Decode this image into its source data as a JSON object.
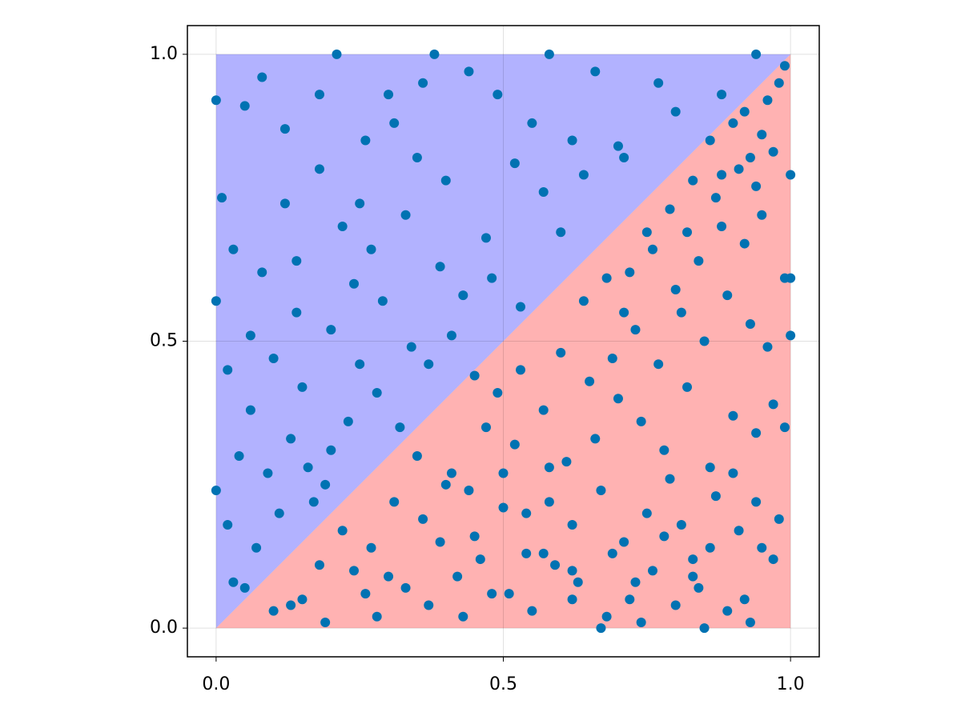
{
  "chart_data": {
    "type": "scatter",
    "xlim": [
      -0.05,
      1.05
    ],
    "ylim": [
      -0.05,
      1.05
    ],
    "xticks": [
      {
        "value": 0,
        "label": "0.0"
      },
      0.5,
      {
        "value": 1,
        "label": "1.0"
      }
    ],
    "yticks": [
      {
        "value": 0,
        "label": "0.0"
      },
      0.5,
      {
        "value": 1,
        "label": "1.0"
      }
    ],
    "grid": true,
    "regions": [
      {
        "color": "rgba(0,0,255,0.3)",
        "x": [
          0,
          0,
          1
        ],
        "y": [
          0,
          1,
          1
        ]
      },
      {
        "color": "rgba(255,0,0,0.3)",
        "x": [
          0,
          1,
          1
        ],
        "y": [
          0,
          0,
          1
        ]
      }
    ],
    "series": [
      {
        "color": "#0072b2",
        "x": [
          0.21,
          0.58,
          0.38,
          0.94,
          0.0,
          0.0,
          0.0,
          0.85,
          0.99,
          1.0,
          1.0,
          1.0,
          0.03,
          0.05,
          0.12,
          0.18,
          0.25,
          0.31,
          0.36,
          0.44,
          0.49,
          0.55,
          0.62,
          0.66,
          0.71,
          0.77,
          0.8,
          0.88,
          0.08,
          0.14,
          0.22,
          0.27,
          0.33,
          0.4,
          0.47,
          0.52,
          0.57,
          0.64,
          0.7,
          0.02,
          0.06,
          0.1,
          0.15,
          0.2,
          0.24,
          0.29,
          0.34,
          0.39,
          0.43,
          0.48,
          0.53,
          0.6,
          0.04,
          0.09,
          0.13,
          0.17,
          0.23,
          0.28,
          0.32,
          0.37,
          0.41,
          0.45,
          0.02,
          0.07,
          0.11,
          0.16,
          0.19,
          0.05,
          0.01,
          0.26,
          0.3,
          0.35,
          0.08,
          0.12,
          0.03,
          0.06,
          0.14,
          0.18,
          0.25,
          0.2,
          0.1,
          0.15,
          0.19,
          0.24,
          0.28,
          0.33,
          0.37,
          0.42,
          0.46,
          0.51,
          0.55,
          0.59,
          0.63,
          0.68,
          0.72,
          0.76,
          0.8,
          0.84,
          0.89,
          0.93,
          0.22,
          0.27,
          0.31,
          0.36,
          0.4,
          0.45,
          0.5,
          0.54,
          0.58,
          0.62,
          0.67,
          0.71,
          0.75,
          0.79,
          0.83,
          0.87,
          0.91,
          0.95,
          0.98,
          0.3,
          0.35,
          0.41,
          0.47,
          0.52,
          0.57,
          0.61,
          0.66,
          0.7,
          0.74,
          0.78,
          0.82,
          0.86,
          0.9,
          0.94,
          0.97,
          0.44,
          0.49,
          0.53,
          0.6,
          0.65,
          0.69,
          0.73,
          0.77,
          0.81,
          0.85,
          0.89,
          0.93,
          0.96,
          0.64,
          0.68,
          0.72,
          0.76,
          0.8,
          0.84,
          0.88,
          0.92,
          0.95,
          0.99,
          0.71,
          0.75,
          0.79,
          0.83,
          0.87,
          0.91,
          0.94,
          0.97,
          0.82,
          0.86,
          0.9,
          0.93,
          0.96,
          0.88,
          0.92,
          0.95,
          0.98,
          0.57,
          0.62,
          0.67,
          0.73,
          0.78,
          0.83,
          0.92,
          0.97,
          0.13,
          0.18,
          0.39,
          0.43,
          0.48,
          0.54,
          0.62,
          0.69,
          0.74,
          0.81,
          0.86,
          0.9,
          0.94,
          0.99,
          0.26,
          0.5,
          0.58
        ],
        "values": [
          1.0,
          1.0,
          1.0,
          1.0,
          0.92,
          0.24,
          0.57,
          0.0,
          0.98,
          0.79,
          0.61,
          0.51,
          0.08,
          0.91,
          0.87,
          0.8,
          0.74,
          0.88,
          0.95,
          0.97,
          0.93,
          0.88,
          0.85,
          0.97,
          0.82,
          0.95,
          0.9,
          0.93,
          0.62,
          0.55,
          0.7,
          0.66,
          0.72,
          0.78,
          0.68,
          0.81,
          0.76,
          0.79,
          0.84,
          0.45,
          0.38,
          0.47,
          0.42,
          0.52,
          0.6,
          0.57,
          0.49,
          0.63,
          0.58,
          0.61,
          0.56,
          0.69,
          0.3,
          0.27,
          0.33,
          0.22,
          0.36,
          0.41,
          0.35,
          0.46,
          0.51,
          0.44,
          0.18,
          0.14,
          0.2,
          0.28,
          0.25,
          0.07,
          0.75,
          0.85,
          0.93,
          0.82,
          0.96,
          0.74,
          0.66,
          0.51,
          0.64,
          0.93,
          0.46,
          0.31,
          0.03,
          0.05,
          0.01,
          0.1,
          0.02,
          0.07,
          0.04,
          0.09,
          0.12,
          0.06,
          0.03,
          0.11,
          0.08,
          0.02,
          0.05,
          0.1,
          0.04,
          0.07,
          0.03,
          0.01,
          0.17,
          0.14,
          0.22,
          0.19,
          0.25,
          0.16,
          0.21,
          0.13,
          0.28,
          0.18,
          0.24,
          0.15,
          0.2,
          0.26,
          0.12,
          0.23,
          0.17,
          0.14,
          0.19,
          0.09,
          0.3,
          0.27,
          0.35,
          0.32,
          0.38,
          0.29,
          0.33,
          0.4,
          0.36,
          0.31,
          0.42,
          0.28,
          0.37,
          0.34,
          0.39,
          0.24,
          0.41,
          0.45,
          0.48,
          0.43,
          0.47,
          0.52,
          0.46,
          0.55,
          0.5,
          0.58,
          0.53,
          0.49,
          0.57,
          0.61,
          0.62,
          0.66,
          0.59,
          0.64,
          0.7,
          0.67,
          0.72,
          0.61,
          0.55,
          0.69,
          0.73,
          0.78,
          0.75,
          0.8,
          0.77,
          0.83,
          0.69,
          0.85,
          0.88,
          0.82,
          0.92,
          0.79,
          0.9,
          0.86,
          0.95,
          0.13,
          0.05,
          0.0,
          0.08,
          0.16,
          0.09,
          0.05,
          0.12,
          0.04,
          0.11,
          0.15,
          0.02,
          0.06,
          0.2,
          0.1,
          0.13,
          0.01,
          0.18,
          0.14,
          0.27,
          0.22,
          0.35,
          0.06,
          0.27,
          0.22
        ]
      }
    ]
  }
}
